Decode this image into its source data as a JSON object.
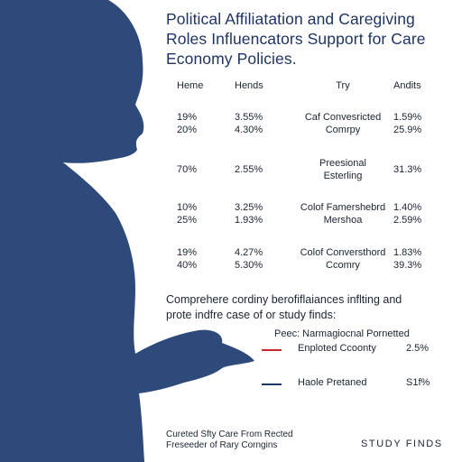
{
  "title": {
    "line1": "Political Affiliatation and Caregiving",
    "line2": "Roles Influencators Support for Care",
    "line3": "Economy Policies."
  },
  "table": {
    "headers": [
      "Heme",
      "Hends",
      "Try",
      "Andits"
    ],
    "rows": [
      {
        "c1": [
          "19%",
          "20%"
        ],
        "c2": [
          "3.55%",
          "4.30%"
        ],
        "c3": [
          "Caf Convesricted",
          "Comrpy"
        ],
        "c4": [
          "1.59%",
          "25.9%"
        ]
      },
      {
        "c1": [
          "70%"
        ],
        "c2": [
          "2.55%"
        ],
        "c3": [
          "Preesional",
          "Esterling"
        ],
        "c4": [
          "31.3%"
        ]
      },
      {
        "c1": [
          "10%",
          "25%"
        ],
        "c2": [
          "3.25%",
          "1.93%"
        ],
        "c3": [
          "Colof Famershebrd",
          "Mershoa"
        ],
        "c4": [
          "1.40%",
          "2.59%"
        ]
      },
      {
        "c1": [
          "19%",
          "40%"
        ],
        "c2": [
          "4.27%",
          "5.30%"
        ],
        "c3": [
          "Colof Conversthord",
          "Ccomry"
        ],
        "c4": [
          "1.83%",
          "39.3%"
        ]
      }
    ]
  },
  "note": {
    "line1": "Comprehere cordiny berofiflaiances inflting and",
    "line2": "prote indfre case of or study finds:"
  },
  "legend": {
    "title": "Peec: Narmagiocnal Pornetted",
    "items": [
      {
        "label": "Enploted Ccoonty",
        "value": "2.5%",
        "color": "#c9282d"
      },
      {
        "label": "Haole Pretaned",
        "value": "S1f%",
        "color": "#1f3464"
      }
    ]
  },
  "footer": {
    "line1": "Cureted Sfty Care From Rected",
    "line2": "Freseeder of Rary Corngins"
  },
  "brand": "STUDY FINDS",
  "colors": {
    "silhouette": "#2d4a7a",
    "accent_red": "#c9282d",
    "title": "#1f3464"
  }
}
